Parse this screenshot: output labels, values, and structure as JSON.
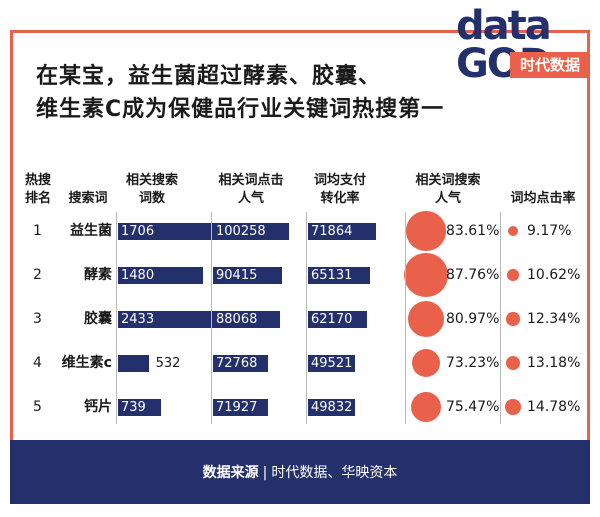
{
  "title_line1": "在某宝，益生菌超过酵素、胶囊、",
  "title_line2": "维生素C成为保健品行业关键词热搜第一",
  "logo": {
    "word1": "data",
    "word2": "GOD",
    "tag": "时代数据"
  },
  "headers": {
    "rank": [
      "热搜",
      "排名"
    ],
    "keyword": [
      "搜索词"
    ],
    "search_count": [
      "相关搜索",
      "词数"
    ],
    "click_popularity": [
      "相关词点击",
      "人气"
    ],
    "conversion": [
      "词均支付",
      "转化率"
    ],
    "search_popularity": [
      "相关词搜索",
      "人气"
    ],
    "ctr": [
      "词均点击率"
    ]
  },
  "footer": {
    "label": "数据来源",
    "sources": "时代数据、华映资本"
  },
  "colors": {
    "navy": "#24306b",
    "coral": "#e9614a"
  },
  "chart_data": {
    "type": "table",
    "columns": [
      "热搜排名",
      "搜索词",
      "相关搜索词数",
      "相关词点击人气",
      "词均支付转化率",
      "相关词搜索人气",
      "词均点击率"
    ],
    "rows": [
      {
        "rank": "1",
        "keyword": "益生菌",
        "search_count": 1706,
        "click_popularity": 100258,
        "conversion": 71864,
        "search_popularity": "83.61%",
        "ctr": "9.17%"
      },
      {
        "rank": "2",
        "keyword": "酵素",
        "search_count": 1480,
        "click_popularity": 90415,
        "conversion": 65131,
        "search_popularity": "87.76%",
        "ctr": "10.62%"
      },
      {
        "rank": "3",
        "keyword": "胶囊",
        "search_count": 2433,
        "click_popularity": 88068,
        "conversion": 62170,
        "search_popularity": "80.97%",
        "ctr": "12.34%"
      },
      {
        "rank": "4",
        "keyword": "维生素c",
        "search_count": 532,
        "click_popularity": 72768,
        "conversion": 49521,
        "search_popularity": "73.23%",
        "ctr": "13.18%"
      },
      {
        "rank": "5",
        "keyword": "钙片",
        "search_count": 739,
        "click_popularity": 71927,
        "conversion": 49832,
        "search_popularity": "75.47%",
        "ctr": "14.78%"
      }
    ]
  }
}
